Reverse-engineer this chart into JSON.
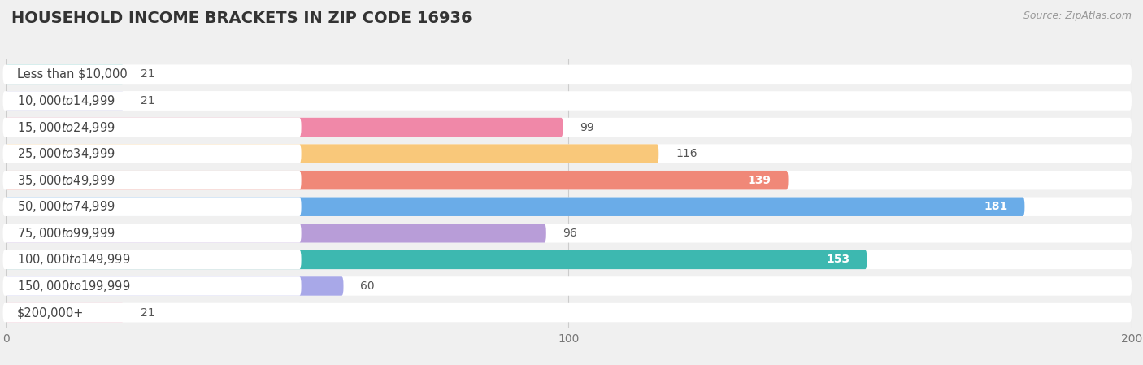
{
  "title": "HOUSEHOLD INCOME BRACKETS IN ZIP CODE 16936",
  "source": "Source: ZipAtlas.com",
  "categories": [
    "Less than $10,000",
    "$10,000 to $14,999",
    "$15,000 to $24,999",
    "$25,000 to $34,999",
    "$35,000 to $49,999",
    "$50,000 to $74,999",
    "$75,000 to $99,999",
    "$100,000 to $149,999",
    "$150,000 to $199,999",
    "$200,000+"
  ],
  "values": [
    21,
    21,
    99,
    116,
    139,
    181,
    96,
    153,
    60,
    21
  ],
  "bar_colors": [
    "#65ccc6",
    "#a8a8d8",
    "#f088a8",
    "#f9c87a",
    "#f08878",
    "#6aace8",
    "#b89dd8",
    "#3db8b0",
    "#a8a8e8",
    "#f4a8c0"
  ],
  "xlim": [
    0,
    200
  ],
  "xticks": [
    0,
    100,
    200
  ],
  "background_color": "#f0f0f0",
  "bar_bg_color": "#ffffff",
  "title_fontsize": 14,
  "label_fontsize": 10.5,
  "value_fontsize": 10,
  "figsize": [
    14.06,
    4.49
  ],
  "dpi": 100,
  "value_inside_threshold": 130
}
